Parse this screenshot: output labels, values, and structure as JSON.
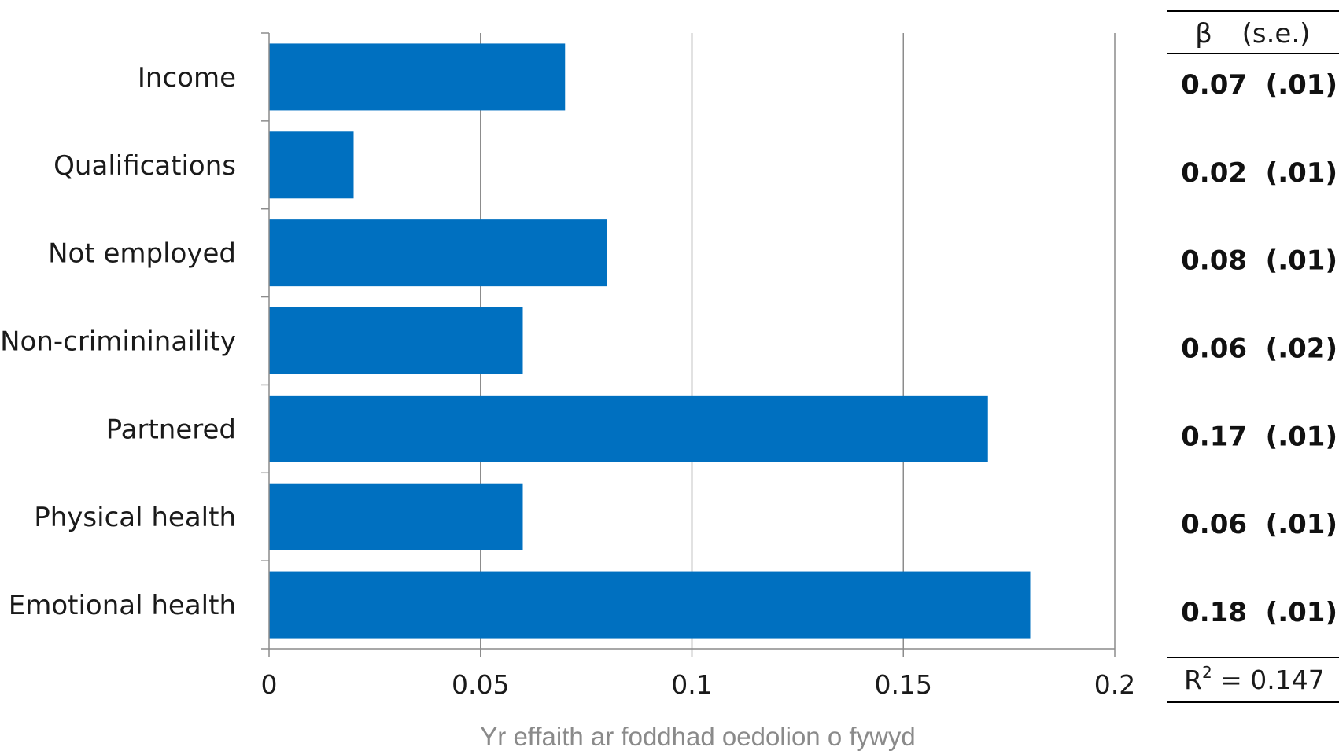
{
  "chart_data": {
    "type": "bar",
    "orientation": "horizontal",
    "categories": [
      "Income",
      "Qualifications",
      "Not employed",
      "Non-crimininaility",
      "Partnered",
      "Physical health",
      "Emotional health"
    ],
    "values": [
      0.07,
      0.02,
      0.08,
      0.06,
      0.17,
      0.06,
      0.18
    ],
    "xlabel": "Yr effaith ar foddhad oedolion o fywyd",
    "xlim": [
      0,
      0.2
    ],
    "xticks": [
      "0",
      "0.05",
      "0.1",
      "0.15",
      "0.2"
    ],
    "grid": true,
    "bar_color": "#0070C0"
  },
  "coef_table": {
    "header_beta": "β",
    "header_se": "(s.e.)",
    "rows": [
      {
        "beta": "0.07",
        "se": "(.01)"
      },
      {
        "beta": "0.02",
        "se": "(.01)"
      },
      {
        "beta": "0.08",
        "se": "(.01)"
      },
      {
        "beta": "0.06",
        "se": "(.02)"
      },
      {
        "beta": "0.17",
        "se": "(.01)"
      },
      {
        "beta": "0.06",
        "se": "(.01)"
      },
      {
        "beta": "0.18",
        "se": "(.01)"
      }
    ],
    "footer_r": "R",
    "footer_sup": "2",
    "footer_value": " = 0.147"
  }
}
